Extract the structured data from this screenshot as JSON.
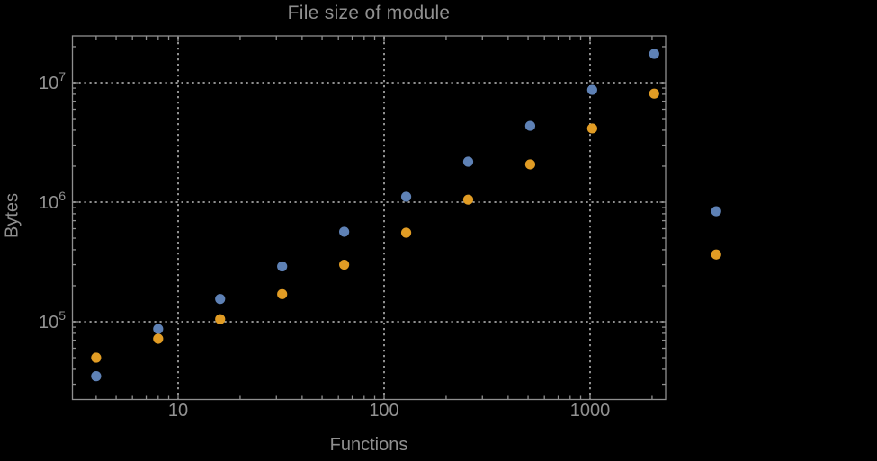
{
  "chart_data": {
    "type": "scatter",
    "title": "File size of module",
    "xlabel": "Functions",
    "ylabel": "Bytes",
    "x_scale": "log",
    "y_scale": "log",
    "grid": "dotted decade gridlines",
    "legend": "none",
    "x": [
      4,
      8,
      16,
      32,
      64,
      128,
      256,
      512,
      1024,
      2048,
      4096
    ],
    "series": [
      {
        "name": "blue",
        "color": "#5E81B5",
        "values": [
          35000,
          87000,
          155000,
          290000,
          565000,
          1110000,
          2180000,
          4350000,
          8700000,
          17400000,
          840000
        ]
      },
      {
        "name": "orange",
        "color": "#E19C24",
        "values": [
          50000,
          72000,
          105000,
          170000,
          300000,
          555000,
          1050000,
          2070000,
          4140000,
          8100000,
          365000
        ]
      }
    ],
    "x_ticks": [
      10,
      100,
      1000
    ],
    "x_tick_labels": [
      "10",
      "100",
      "1000"
    ],
    "y_ticks": [
      100000,
      1000000,
      10000000
    ],
    "y_tick_labels": [
      "10^5",
      "10^6",
      "10^7"
    ],
    "xlim": [
      3.1,
      2330
    ],
    "ylim": [
      22500,
      24600000
    ]
  },
  "style": {
    "background": "#000000",
    "axis_color": "#8f8f8f",
    "label_color": "#929292",
    "series_blue": "#5E81B5",
    "series_orange": "#E19C24"
  }
}
